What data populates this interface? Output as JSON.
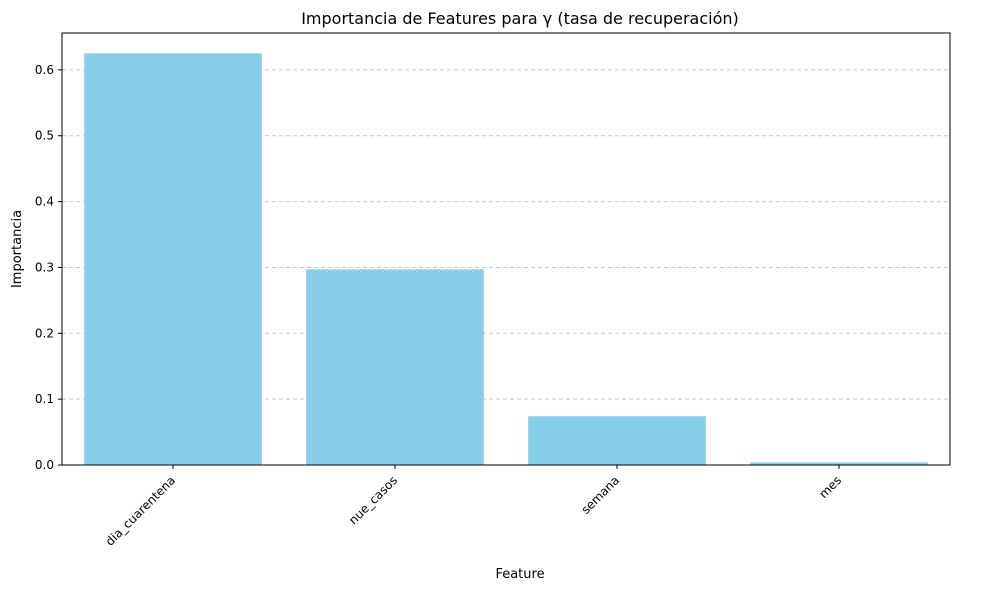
{
  "chart_data": {
    "type": "bar",
    "title": "Importancia de Features para γ (tasa de recuperación)",
    "xlabel": "Feature",
    "ylabel": "Importancia",
    "categories": [
      "dia_cuarentena",
      "nue_casos",
      "semana",
      "mes"
    ],
    "values": [
      0.625,
      0.297,
      0.074,
      0.004
    ],
    "ylim": [
      0,
      0.656
    ],
    "yticks": [
      0.0,
      0.1,
      0.2,
      0.3,
      0.4,
      0.5,
      0.6
    ],
    "ytick_labels": [
      "0.0",
      "0.1",
      "0.2",
      "0.3",
      "0.4",
      "0.5",
      "0.6"
    ],
    "x_tick_rotation_deg": 45,
    "grid": "y-axis dashed",
    "legend": "none",
    "colors": {
      "bar": "#87ceeb",
      "grid": "#c8c8c8",
      "axis": "#000000",
      "background": "#ffffff"
    }
  }
}
